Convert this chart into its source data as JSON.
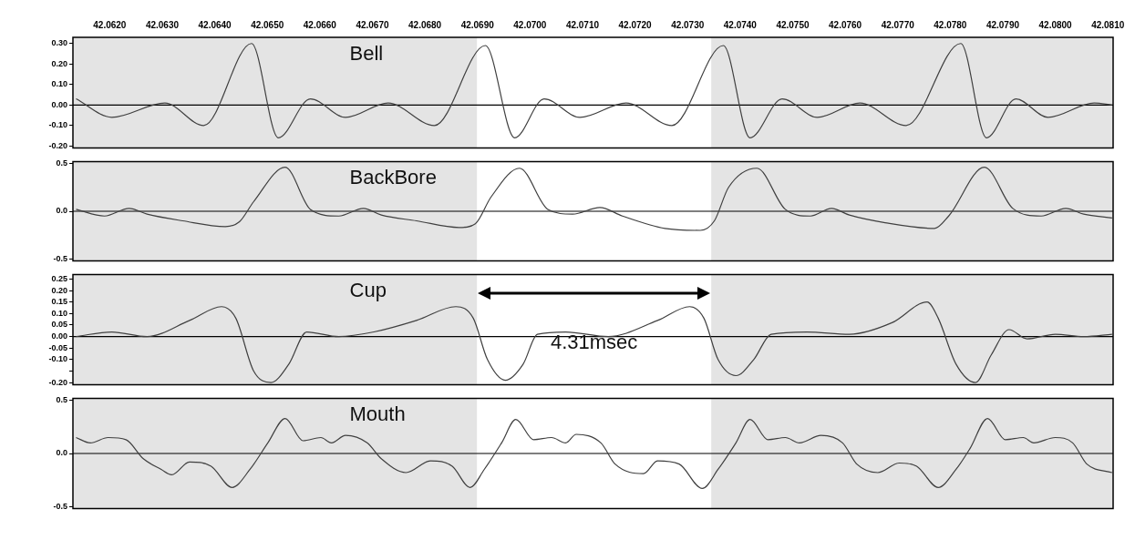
{
  "chart_data": [
    {
      "type": "line",
      "title": "Bell",
      "x": [
        42.06136,
        42.06204,
        42.06305,
        42.06379,
        42.0647,
        42.06521,
        42.06582,
        42.06649,
        42.0673,
        42.06818,
        42.06915,
        42.06971,
        42.07027,
        42.07095,
        42.07183,
        42.0727,
        42.07368,
        42.07419,
        42.0748,
        42.07547,
        42.07628,
        42.07716,
        42.0782,
        42.07869,
        42.07925,
        42.07986,
        42.08074,
        42.08108
      ],
      "series": [
        {
          "color": "#404040",
          "values": [
            0.03,
            -0.06,
            0.01,
            -0.1,
            0.3,
            -0.16,
            0.03,
            -0.06,
            0.01,
            -0.1,
            0.29,
            -0.16,
            0.03,
            -0.06,
            0.01,
            -0.1,
            0.29,
            -0.16,
            0.03,
            -0.06,
            0.01,
            -0.1,
            0.3,
            -0.16,
            0.03,
            -0.06,
            0.01,
            0.0
          ]
        }
      ],
      "xlim": [
        42.0613,
        42.0811
      ],
      "xticks": [
        {
          "value": 42.062,
          "label": "42.0620"
        },
        {
          "value": 42.063,
          "label": "42.0630"
        },
        {
          "value": 42.064,
          "label": "42.0640"
        },
        {
          "value": 42.065,
          "label": "42.0650"
        },
        {
          "value": 42.066,
          "label": "42.0660"
        },
        {
          "value": 42.067,
          "label": "42.0670"
        },
        {
          "value": 42.068,
          "label": "42.0680"
        },
        {
          "value": 42.069,
          "label": "42.0690"
        },
        {
          "value": 42.07,
          "label": "42.0700"
        },
        {
          "value": 42.071,
          "label": "42.0710"
        },
        {
          "value": 42.072,
          "label": "42.0720"
        },
        {
          "value": 42.073,
          "label": "42.0730"
        },
        {
          "value": 42.074,
          "label": "42.0740"
        },
        {
          "value": 42.075,
          "label": "42.0750"
        },
        {
          "value": 42.076,
          "label": "42.0760"
        },
        {
          "value": 42.077,
          "label": "42.0770"
        },
        {
          "value": 42.078,
          "label": "42.0780"
        },
        {
          "value": 42.079,
          "label": "42.0790"
        },
        {
          "value": 42.08,
          "label": "42.0800"
        },
        {
          "value": 42.081,
          "label": "42.0810"
        }
      ],
      "ylim": [
        -0.21,
        0.33
      ],
      "yticks": [
        {
          "value": 0.3,
          "label": "0.30"
        },
        {
          "value": 0.2,
          "label": "0.20"
        },
        {
          "value": 0.1,
          "label": "0.10"
        },
        {
          "value": 0,
          "label": "0.00"
        },
        {
          "value": -0.1,
          "label": "-0.10"
        },
        {
          "value": -0.2,
          "label": "-0.20"
        }
      ],
      "bands": [
        {
          "axis": "x",
          "from": 42.0613,
          "to": 42.06899,
          "color": "#e4e4e4"
        },
        {
          "axis": "x",
          "from": 42.07345,
          "to": 42.0811,
          "color": "#e4e4e4"
        }
      ],
      "ref_lines": [
        {
          "axis": "y",
          "value": 0,
          "color": "#000000"
        }
      ]
    },
    {
      "type": "line",
      "title": "BackBore",
      "tick_labels": "y",
      "x": [
        42.06136,
        42.0619,
        42.06237,
        42.06271,
        42.06339,
        42.0642,
        42.06447,
        42.06474,
        42.06534,
        42.06582,
        42.06636,
        42.06683,
        42.06717,
        42.06784,
        42.06865,
        42.06896,
        42.06926,
        42.0698,
        42.07034,
        42.07081,
        42.07133,
        42.07176,
        42.07257,
        42.07324,
        42.07351,
        42.07378,
        42.07432,
        42.07486,
        42.07534,
        42.07574,
        42.07608,
        42.07676,
        42.0777,
        42.07797,
        42.07865,
        42.07919,
        42.07973,
        42.0802,
        42.08054,
        42.08108
      ],
      "series": [
        {
          "color": "#404040",
          "values": [
            0.02,
            -0.05,
            0.03,
            -0.03,
            -0.1,
            -0.16,
            -0.11,
            0.1,
            0.46,
            0.02,
            -0.05,
            0.03,
            -0.04,
            -0.1,
            -0.17,
            -0.13,
            0.15,
            0.45,
            0.02,
            -0.03,
            0.04,
            -0.05,
            -0.18,
            -0.2,
            -0.1,
            0.25,
            0.45,
            0.02,
            -0.05,
            0.03,
            -0.04,
            -0.12,
            -0.18,
            -0.05,
            0.46,
            0.03,
            -0.05,
            0.03,
            -0.03,
            -0.07
          ]
        }
      ],
      "xlim": [
        42.0613,
        42.0811
      ],
      "ylim": [
        -0.52,
        0.52
      ],
      "yticks": [
        {
          "value": 0.5,
          "label": "0.5"
        },
        {
          "value": 0,
          "label": "0.0"
        },
        {
          "value": -0.5,
          "label": "-0.5"
        }
      ],
      "bands": [
        {
          "axis": "x",
          "from": 42.0613,
          "to": 42.06899,
          "color": "#e4e4e4"
        },
        {
          "axis": "x",
          "from": 42.07345,
          "to": 42.0811,
          "color": "#e4e4e4"
        }
      ],
      "ref_lines": [
        {
          "axis": "y",
          "value": 0,
          "color": "#000000"
        }
      ]
    },
    {
      "type": "line",
      "title": "Cup",
      "tick_labels": "y",
      "x": [
        42.06136,
        42.06204,
        42.06271,
        42.06352,
        42.06413,
        42.0644,
        42.06474,
        42.06507,
        42.06541,
        42.06575,
        42.06636,
        42.06703,
        42.06784,
        42.06859,
        42.06892,
        42.06919,
        42.06953,
        42.06987,
        42.07014,
        42.07068,
        42.07149,
        42.07243,
        42.07304,
        42.07331,
        42.07358,
        42.07392,
        42.07426,
        42.07459,
        42.07527,
        42.07608,
        42.07689,
        42.07756,
        42.07777,
        42.07811,
        42.07848,
        42.07878,
        42.07912,
        42.07946,
        42.08,
        42.08054,
        42.08108
      ],
      "series": [
        {
          "color": "#404040",
          "values": [
            0.0,
            0.02,
            0.0,
            0.07,
            0.13,
            0.08,
            -0.15,
            -0.2,
            -0.12,
            0.02,
            0.0,
            0.02,
            0.07,
            0.13,
            0.08,
            -0.1,
            -0.19,
            -0.12,
            0.01,
            0.02,
            0.0,
            0.07,
            0.13,
            0.08,
            -0.1,
            -0.17,
            -0.1,
            0.01,
            0.02,
            0.01,
            0.06,
            0.15,
            0.08,
            -0.12,
            -0.2,
            -0.08,
            0.03,
            -0.01,
            0.01,
            0.0,
            0.01
          ]
        }
      ],
      "xlim": [
        42.0613,
        42.0811
      ],
      "ylim": [
        -0.21,
        0.27
      ],
      "yticks": [
        {
          "value": 0.25,
          "label": "0.25"
        },
        {
          "value": 0.2,
          "label": "0.20"
        },
        {
          "value": 0.15,
          "label": "0.15"
        },
        {
          "value": 0.1,
          "label": "0.10"
        },
        {
          "value": 0.05,
          "label": "0.05"
        },
        {
          "value": 0,
          "label": "0.00"
        },
        {
          "value": -0.05,
          "label": "-0.05"
        },
        {
          "value": -0.1,
          "label": "-0.10"
        },
        {
          "value": -0.15,
          "label": null
        },
        {
          "value": -0.2,
          "label": "-0.20"
        }
      ],
      "bands": [
        {
          "axis": "x",
          "from": 42.0613,
          "to": 42.06899,
          "color": "#e4e4e4"
        },
        {
          "axis": "x",
          "from": 42.07345,
          "to": 42.0811,
          "color": "#e4e4e4"
        }
      ],
      "ref_lines": [
        {
          "axis": "y",
          "value": 0,
          "color": "#000000"
        }
      ],
      "annotations": [
        "4.31msec"
      ]
    },
    {
      "type": "line",
      "title": "Mouth",
      "tick_labels": "y",
      "x": [
        42.06136,
        42.06163,
        42.06197,
        42.06231,
        42.06264,
        42.06298,
        42.06318,
        42.06352,
        42.06393,
        42.06433,
        42.06467,
        42.06501,
        42.06534,
        42.06568,
        42.06602,
        42.06622,
        42.06649,
        42.0669,
        42.06717,
        42.06764,
        42.06811,
        42.06852,
        42.06886,
        42.06913,
        42.06946,
        42.06973,
        42.07007,
        42.07041,
        42.07068,
        42.07088,
        42.07135,
        42.07162,
        42.07216,
        42.07243,
        42.07284,
        42.07328,
        42.07358,
        42.07392,
        42.07419,
        42.07453,
        42.07486,
        42.07513,
        42.07554,
        42.07595,
        42.07622,
        42.07662,
        42.07703,
        42.07736,
        42.07777,
        42.07811,
        42.07838,
        42.07871,
        42.07905,
        42.07939,
        42.07959,
        42.08,
        42.08033,
        42.0806,
        42.08108
      ],
      "series": [
        {
          "color": "#404040",
          "values": [
            0.15,
            0.1,
            0.15,
            0.13,
            -0.05,
            -0.15,
            -0.2,
            -0.08,
            -0.12,
            -0.32,
            -0.15,
            0.1,
            0.33,
            0.12,
            0.15,
            0.1,
            0.17,
            0.1,
            -0.05,
            -0.18,
            -0.07,
            -0.12,
            -0.32,
            -0.15,
            0.1,
            0.32,
            0.13,
            0.15,
            0.1,
            0.18,
            0.1,
            -0.1,
            -0.19,
            -0.07,
            -0.1,
            -0.33,
            -0.15,
            0.1,
            0.32,
            0.13,
            0.15,
            0.1,
            0.17,
            0.1,
            -0.1,
            -0.18,
            -0.09,
            -0.12,
            -0.32,
            -0.15,
            0.05,
            0.33,
            0.13,
            0.15,
            0.1,
            0.15,
            0.1,
            -0.1,
            -0.18
          ]
        }
      ],
      "xlim": [
        42.0613,
        42.0811
      ],
      "ylim": [
        -0.52,
        0.52
      ],
      "yticks": [
        {
          "value": 0.5,
          "label": "0.5"
        },
        {
          "value": 0,
          "label": "0.0"
        },
        {
          "value": -0.5,
          "label": "-0.5"
        }
      ],
      "bands": [
        {
          "axis": "x",
          "from": 42.0613,
          "to": 42.06899,
          "color": "#e4e4e4"
        },
        {
          "axis": "x",
          "from": 42.07345,
          "to": 42.0811,
          "color": "#e4e4e4"
        }
      ],
      "ref_lines": [
        {
          "axis": "y",
          "value": 0,
          "color": "#000000"
        }
      ]
    }
  ]
}
